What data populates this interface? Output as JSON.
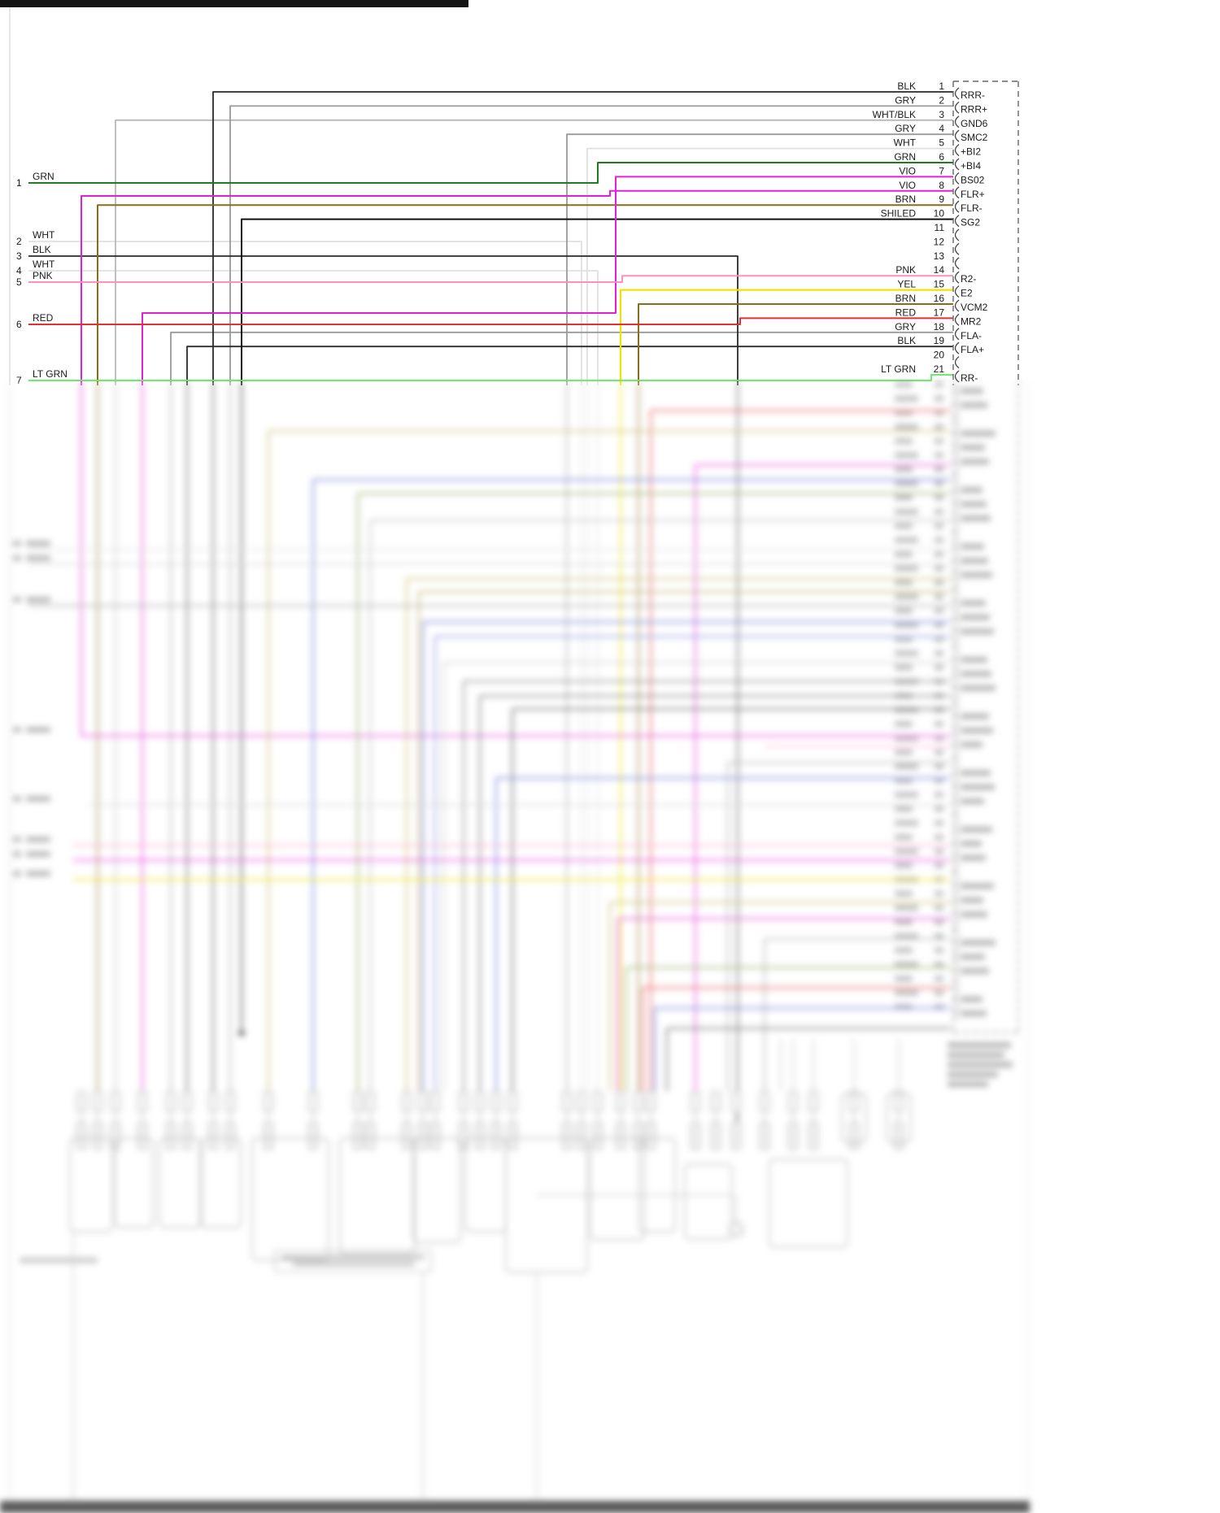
{
  "page": {
    "background": "#ffffff"
  },
  "right_connector": {
    "pins": [
      {
        "num": "1",
        "wire": "BLK",
        "signal": "RRR-"
      },
      {
        "num": "2",
        "wire": "GRY",
        "signal": "RRR+"
      },
      {
        "num": "3",
        "wire": "WHT/BLK",
        "signal": "GND6"
      },
      {
        "num": "4",
        "wire": "GRY",
        "signal": "SMC2"
      },
      {
        "num": "5",
        "wire": "WHT",
        "signal": "+BI2"
      },
      {
        "num": "6",
        "wire": "GRN",
        "signal": "+BI4"
      },
      {
        "num": "7",
        "wire": "VIO",
        "signal": "BS02"
      },
      {
        "num": "8",
        "wire": "VIO",
        "signal": "FLR+"
      },
      {
        "num": "9",
        "wire": "BRN",
        "signal": "FLR-"
      },
      {
        "num": "10",
        "wire": "SHILED",
        "signal": "SG2"
      },
      {
        "num": "11",
        "wire": "",
        "signal": ""
      },
      {
        "num": "12",
        "wire": "",
        "signal": ""
      },
      {
        "num": "13",
        "wire": "",
        "signal": ""
      },
      {
        "num": "14",
        "wire": "PNK",
        "signal": "R2-"
      },
      {
        "num": "15",
        "wire": "YEL",
        "signal": "E2"
      },
      {
        "num": "16",
        "wire": "BRN",
        "signal": "VCM2"
      },
      {
        "num": "17",
        "wire": "RED",
        "signal": "MR2"
      },
      {
        "num": "18",
        "wire": "GRY",
        "signal": "FLA-"
      },
      {
        "num": "19",
        "wire": "BLK",
        "signal": "FLA+"
      },
      {
        "num": "20",
        "wire": "",
        "signal": ""
      },
      {
        "num": "21",
        "wire": "LT GRN",
        "signal": "RR-"
      }
    ]
  },
  "left_pins": [
    {
      "num": "1",
      "label": "GRN"
    },
    {
      "num": "2",
      "label": "WHT"
    },
    {
      "num": "3",
      "label": "BLK"
    },
    {
      "num": "4",
      "label": "WHT"
    },
    {
      "num": "5",
      "label": "PNK"
    },
    {
      "num": "6",
      "label": "RED"
    },
    {
      "num": "7",
      "label": "LT GRN"
    }
  ],
  "wire_colors": {
    "BLK": "#2a2a2a",
    "GRY": "#9a9a9a",
    "WHT": "#e0e0e0",
    "WHT/BLK": "#b8b8b8",
    "GRN": "#1e7d1e",
    "VIO": "#e320d6",
    "BRN": "#8a6d1b",
    "SHILED": "#111111",
    "PNK": "#ff8fc0",
    "YEL": "#ede400",
    "RED": "#e03232",
    "LT GRN": "#7ae47a"
  }
}
